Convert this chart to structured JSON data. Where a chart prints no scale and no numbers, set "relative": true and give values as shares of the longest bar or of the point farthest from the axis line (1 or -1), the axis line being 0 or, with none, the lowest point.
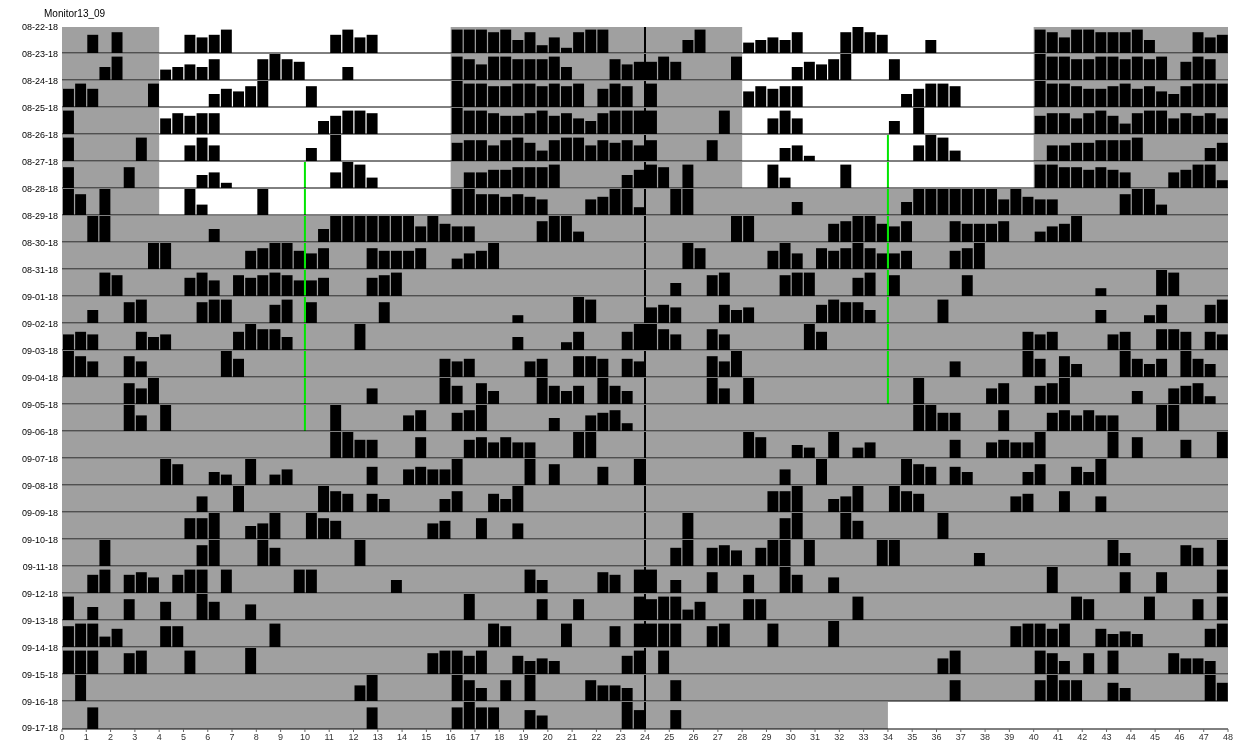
{
  "chart_data": [
    {
      "type": "bar",
      "title": "Monitor13_09",
      "ylabel": "08-22-18",
      "relative": true,
      "color": "#000000",
      "xlim": [
        0,
        48
      ],
      "tick_labels": false,
      "bands": [
        {
          "axis": "x",
          "from": 4,
          "to": 16,
          "color": "#ffffff"
        },
        {
          "axis": "x",
          "from": 28,
          "to": 40,
          "color": "#ffffff"
        }
      ],
      "ref_lines": [
        {
          "axis": "x",
          "value": 24,
          "color": "#000000"
        }
      ],
      "x": [
        1.25,
        2.25,
        5.25,
        5.75,
        6.25,
        6.75,
        11.25,
        11.75,
        12.25,
        12.75,
        16.25,
        16.75,
        17.25,
        17.75,
        18.25,
        18.75,
        19.25,
        19.75,
        20.25,
        20.75,
        21.25,
        21.75,
        22.25,
        25.75,
        26.25,
        28.25,
        28.75,
        29.25,
        29.75,
        30.25,
        32.25,
        32.75,
        33.25,
        33.75,
        35.75,
        40.25,
        40.75,
        41.25,
        41.75,
        42.25,
        42.75,
        43.25,
        43.75,
        44.25,
        44.75,
        46.75,
        47.25,
        47.75
      ],
      "values": [
        0.7,
        0.8,
        0.7,
        0.6,
        0.7,
        0.9,
        0.7,
        0.9,
        0.6,
        0.7,
        0.9,
        0.9,
        0.9,
        0.8,
        0.9,
        0.5,
        0.8,
        0.3,
        0.6,
        0.2,
        0.8,
        0.9,
        0.9,
        0.5,
        0.9,
        0.4,
        0.5,
        0.6,
        0.5,
        0.8,
        0.8,
        1,
        0.8,
        0.7,
        0.5,
        0.9,
        0.8,
        0.6,
        0.9,
        0.9,
        0.8,
        0.8,
        0.8,
        0.9,
        0.5,
        0.8,
        0.6,
        0.7
      ]
    },
    {
      "type": "bar",
      "ylabel": "08-23-18",
      "relative": true,
      "color": "#000000",
      "xlim": [
        0,
        48
      ],
      "tick_labels": false,
      "bands": [
        {
          "axis": "x",
          "from": 4,
          "to": 16,
          "color": "#ffffff"
        },
        {
          "axis": "x",
          "from": 28,
          "to": 40,
          "color": "#ffffff"
        }
      ],
      "ref_lines": [
        {
          "axis": "x",
          "value": 24,
          "color": "#000000"
        }
      ],
      "x": [
        1.75,
        2.25,
        4.25,
        4.75,
        5.25,
        5.75,
        6.25,
        8.25,
        8.75,
        9.25,
        9.75,
        11.75,
        16.25,
        16.75,
        17.25,
        17.75,
        18.25,
        18.75,
        19.25,
        19.75,
        20.25,
        20.75,
        22.75,
        23.25,
        23.75,
        24.25,
        24.75,
        25.25,
        27.75,
        30.25,
        30.75,
        31.25,
        31.75,
        32.25,
        34.25,
        40.25,
        40.75,
        41.25,
        41.75,
        42.25,
        42.75,
        43.25,
        43.75,
        44.25,
        44.75,
        45.25,
        46.25,
        46.75,
        47.25
      ],
      "values": [
        0.5,
        0.9,
        0.4,
        0.5,
        0.6,
        0.5,
        0.8,
        0.8,
        1,
        0.8,
        0.7,
        0.5,
        0.9,
        0.8,
        0.6,
        0.9,
        0.9,
        0.8,
        0.8,
        0.8,
        0.9,
        0.5,
        0.8,
        0.6,
        0.7,
        0.7,
        0.9,
        0.7,
        0.9,
        0.5,
        0.7,
        0.6,
        0.8,
        1,
        0.8,
        1,
        0.9,
        0.9,
        0.8,
        0.8,
        0.9,
        0.9,
        0.8,
        0.9,
        0.8,
        0.9,
        0.7,
        0.9,
        0.8
      ]
    },
    {
      "type": "bar",
      "ylabel": "08-24-18",
      "relative": true,
      "color": "#000000",
      "xlim": [
        0,
        48
      ],
      "tick_labels": false,
      "bands": [
        {
          "axis": "x",
          "from": 4,
          "to": 16,
          "color": "#ffffff"
        },
        {
          "axis": "x",
          "from": 28,
          "to": 40,
          "color": "#ffffff"
        }
      ],
      "ref_lines": [
        {
          "axis": "x",
          "value": 24,
          "color": "#000000"
        }
      ],
      "x": [
        0.25,
        0.75,
        1.25,
        3.75,
        6.25,
        6.75,
        7.25,
        7.75,
        8.25,
        10.25,
        16.25,
        16.75,
        17.25,
        17.75,
        18.25,
        18.75,
        19.25,
        19.75,
        20.25,
        20.75,
        21.25,
        22.25,
        22.75,
        23.25,
        24.25,
        28.25,
        28.75,
        29.25,
        29.75,
        30.25,
        34.75,
        35.25,
        35.75,
        36.25,
        36.75,
        40.25,
        40.75,
        41.25,
        41.75,
        42.25,
        42.75,
        43.25,
        43.75,
        44.25,
        44.75,
        45.25,
        45.75,
        46.25,
        46.75,
        47.25,
        47.75
      ],
      "values": [
        0.7,
        0.9,
        0.7,
        0.9,
        0.5,
        0.7,
        0.6,
        0.8,
        1,
        0.8,
        1,
        0.9,
        0.9,
        0.8,
        0.8,
        0.9,
        0.9,
        0.8,
        0.9,
        0.8,
        0.9,
        0.7,
        0.9,
        0.8,
        0.9,
        0.6,
        0.8,
        0.7,
        0.8,
        0.8,
        0.5,
        0.7,
        0.9,
        0.9,
        0.8,
        1,
        0.9,
        0.9,
        0.8,
        0.7,
        0.7,
        0.8,
        0.9,
        0.7,
        0.8,
        0.6,
        0.5,
        0.8,
        0.9,
        0.9,
        0.9
      ]
    },
    {
      "type": "bar",
      "ylabel": "08-25-18",
      "relative": true,
      "color": "#000000",
      "xlim": [
        0,
        48
      ],
      "tick_labels": false,
      "bands": [
        {
          "axis": "x",
          "from": 4,
          "to": 16,
          "color": "#ffffff"
        },
        {
          "axis": "x",
          "from": 28,
          "to": 40,
          "color": "#ffffff"
        }
      ],
      "ref_lines": [
        {
          "axis": "x",
          "value": 24,
          "color": "#000000"
        }
      ],
      "x": [
        0.25,
        4.25,
        4.75,
        5.25,
        5.75,
        6.25,
        10.75,
        11.25,
        11.75,
        12.25,
        12.75,
        16.25,
        16.75,
        17.25,
        17.75,
        18.25,
        18.75,
        19.25,
        19.75,
        20.25,
        20.75,
        21.25,
        21.75,
        22.25,
        22.75,
        23.25,
        23.75,
        24.25,
        27.25,
        29.25,
        29.75,
        30.25,
        34.25,
        35.25,
        40.25,
        40.75,
        41.25,
        41.75,
        42.25,
        42.75,
        43.25,
        43.75,
        44.25,
        44.75,
        45.25,
        45.75,
        46.25,
        46.75,
        47.25,
        47.75
      ],
      "values": [
        0.9,
        0.6,
        0.8,
        0.7,
        0.8,
        0.8,
        0.5,
        0.7,
        0.9,
        0.9,
        0.8,
        1,
        0.9,
        0.9,
        0.8,
        0.7,
        0.7,
        0.8,
        0.9,
        0.7,
        0.8,
        0.6,
        0.5,
        0.8,
        0.9,
        0.9,
        0.9,
        0.9,
        0.9,
        0.6,
        0.9,
        0.6,
        0.5,
        1,
        0.7,
        0.8,
        0.8,
        0.6,
        0.8,
        0.9,
        0.7,
        0.4,
        0.8,
        0.9,
        0.9,
        0.6,
        0.8,
        0.7,
        0.8,
        0.6
      ]
    },
    {
      "type": "bar",
      "ylabel": "08-26-18",
      "relative": true,
      "color": "#000000",
      "xlim": [
        0,
        48
      ],
      "tick_labels": false,
      "bands": [
        {
          "axis": "x",
          "from": 4,
          "to": 16,
          "color": "#ffffff"
        },
        {
          "axis": "x",
          "from": 28,
          "to": 40,
          "color": "#ffffff"
        }
      ],
      "ref_lines": [
        {
          "axis": "x",
          "value": 24,
          "color": "#000000"
        },
        {
          "axis": "x",
          "value": 34,
          "color": "#00e600"
        }
      ],
      "x": [
        0.25,
        3.25,
        5.25,
        5.75,
        6.25,
        10.25,
        11.25,
        16.25,
        16.75,
        17.25,
        17.75,
        18.25,
        18.75,
        19.25,
        19.75,
        20.25,
        20.75,
        21.25,
        21.75,
        22.25,
        22.75,
        23.25,
        23.75,
        24.25,
        26.75,
        29.75,
        30.25,
        30.75,
        35.25,
        35.75,
        36.25,
        36.75,
        40.75,
        41.25,
        41.75,
        42.25,
        42.75,
        43.25,
        43.75,
        44.25,
        47.25,
        47.75
      ],
      "values": [
        0.9,
        0.9,
        0.6,
        0.9,
        0.6,
        0.5,
        1,
        0.7,
        0.8,
        0.8,
        0.6,
        0.8,
        0.9,
        0.7,
        0.4,
        0.8,
        0.9,
        0.9,
        0.6,
        0.8,
        0.7,
        0.8,
        0.6,
        0.8,
        0.8,
        0.5,
        0.6,
        0.2,
        0.6,
        1,
        0.9,
        0.4,
        0.6,
        0.6,
        0.7,
        0.7,
        0.8,
        0.8,
        0.8,
        0.9,
        0.5,
        0.7
      ]
    },
    {
      "type": "bar",
      "ylabel": "08-27-18",
      "relative": true,
      "color": "#000000",
      "xlim": [
        0,
        48
      ],
      "tick_labels": false,
      "bands": [
        {
          "axis": "x",
          "from": 4,
          "to": 16,
          "color": "#ffffff"
        },
        {
          "axis": "x",
          "from": 28,
          "to": 40,
          "color": "#ffffff"
        }
      ],
      "ref_lines": [
        {
          "axis": "x",
          "value": 24,
          "color": "#000000"
        },
        {
          "axis": "x",
          "value": 10,
          "color": "#00e600"
        },
        {
          "axis": "x",
          "value": 34,
          "color": "#00e600"
        }
      ],
      "x": [
        0.25,
        2.75,
        5.75,
        6.25,
        6.75,
        11.25,
        11.75,
        12.25,
        12.75,
        16.75,
        17.25,
        17.75,
        18.25,
        18.75,
        19.25,
        19.75,
        20.25,
        23.25,
        23.75,
        24.25,
        24.75,
        25.75,
        29.25,
        29.75,
        32.25,
        40.25,
        40.75,
        41.25,
        41.75,
        42.25,
        42.75,
        43.25,
        43.75,
        45.75,
        46.25,
        46.75,
        47.25,
        47.75
      ],
      "values": [
        0.8,
        0.8,
        0.5,
        0.6,
        0.2,
        0.6,
        1,
        0.9,
        0.4,
        0.6,
        0.6,
        0.7,
        0.7,
        0.8,
        0.8,
        0.8,
        0.9,
        0.5,
        0.7,
        0.9,
        0.8,
        0.9,
        0.9,
        0.4,
        0.9,
        0.9,
        0.9,
        0.8,
        0.8,
        0.7,
        0.8,
        0.7,
        0.6,
        0.6,
        0.7,
        0.9,
        0.9,
        0.3
      ]
    },
    {
      "type": "bar",
      "ylabel": "08-28-18",
      "relative": true,
      "color": "#000000",
      "xlim": [
        0,
        48
      ],
      "tick_labels": false,
      "bands": [
        {
          "axis": "x",
          "from": 4,
          "to": 16,
          "color": "#ffffff"
        }
      ],
      "ref_lines": [
        {
          "axis": "x",
          "value": 24,
          "color": "#000000"
        },
        {
          "axis": "x",
          "value": 10,
          "color": "#00e600"
        },
        {
          "axis": "x",
          "value": 34,
          "color": "#00e600"
        }
      ],
      "x": [
        0.25,
        0.75,
        1.75,
        5.25,
        5.75,
        8.25,
        16.25,
        16.75,
        17.25,
        17.75,
        18.25,
        18.75,
        19.25,
        19.75,
        21.75,
        22.25,
        22.75,
        23.25,
        23.75,
        25.25,
        25.75,
        30.25,
        34.75,
        35.25,
        35.75,
        36.25,
        36.75,
        37.25,
        37.75,
        38.25,
        38.75,
        39.25,
        39.75,
        40.25,
        40.75,
        43.75,
        44.25,
        44.75,
        45.25
      ],
      "values": [
        1,
        0.8,
        1,
        1,
        0.4,
        1,
        1,
        1,
        0.8,
        0.8,
        0.7,
        0.8,
        0.7,
        0.6,
        0.6,
        0.7,
        1,
        1,
        0.3,
        1,
        1,
        0.5,
        0.5,
        1,
        1,
        1,
        1,
        1,
        1,
        1,
        0.6,
        1,
        0.7,
        0.6,
        0.6,
        0.8,
        1,
        1,
        0.4
      ]
    },
    {
      "type": "bar",
      "ylabel": "08-29-18",
      "relative": true,
      "color": "#000000",
      "xlim": [
        0,
        48
      ],
      "tick_labels": false,
      "ref_lines": [
        {
          "axis": "x",
          "value": 24,
          "color": "#000000"
        },
        {
          "axis": "x",
          "value": 10,
          "color": "#00e600"
        },
        {
          "axis": "x",
          "value": 34,
          "color": "#00e600"
        }
      ],
      "x": [
        1.25,
        1.75,
        6.25,
        10.75,
        11.25,
        11.75,
        12.25,
        12.75,
        13.25,
        13.75,
        14.25,
        14.75,
        15.25,
        15.75,
        16.25,
        16.75,
        19.75,
        20.25,
        20.75,
        21.25,
        27.75,
        28.25,
        31.75,
        32.25,
        32.75,
        33.25,
        33.75,
        34.25,
        34.75,
        36.75,
        37.25,
        37.75,
        38.25,
        38.75,
        40.25,
        40.75,
        41.25,
        41.75
      ],
      "values": [
        1,
        1,
        0.5,
        0.5,
        1,
        1,
        1,
        1,
        1,
        1,
        1,
        0.6,
        1,
        0.7,
        0.6,
        0.6,
        0.8,
        1,
        1,
        0.4,
        1,
        1,
        0.7,
        0.8,
        1,
        1,
        0.7,
        0.6,
        0.8,
        0.8,
        0.7,
        0.7,
        0.7,
        0.8,
        0.4,
        0.6,
        0.7,
        1
      ]
    },
    {
      "type": "bar",
      "ylabel": "08-30-18",
      "relative": true,
      "color": "#000000",
      "xlim": [
        0,
        48
      ],
      "tick_labels": false,
      "ref_lines": [
        {
          "axis": "x",
          "value": 24,
          "color": "#000000"
        },
        {
          "axis": "x",
          "value": 10,
          "color": "#00e600"
        },
        {
          "axis": "x",
          "value": 34,
          "color": "#00e600"
        }
      ],
      "x": [
        3.75,
        4.25,
        7.75,
        8.25,
        8.75,
        9.25,
        9.75,
        10.25,
        10.75,
        12.75,
        13.25,
        13.75,
        14.25,
        14.75,
        16.25,
        16.75,
        17.25,
        17.75,
        25.75,
        26.25,
        29.25,
        29.75,
        30.25,
        31.25,
        31.75,
        32.25,
        32.75,
        33.25,
        33.75,
        34.25,
        34.75,
        36.75,
        37.25,
        37.75
      ],
      "values": [
        1,
        1,
        0.7,
        0.8,
        1,
        1,
        0.7,
        0.6,
        0.8,
        0.8,
        0.7,
        0.7,
        0.7,
        0.8,
        0.4,
        0.6,
        0.7,
        1,
        1,
        0.8,
        0.7,
        1,
        0.6,
        0.8,
        0.7,
        0.8,
        1,
        0.8,
        0.6,
        0.6,
        0.7,
        0.7,
        0.8,
        1
      ]
    },
    {
      "type": "bar",
      "ylabel": "08-31-18",
      "relative": true,
      "color": "#000000",
      "xlim": [
        0,
        48
      ],
      "tick_labels": false,
      "ref_lines": [
        {
          "axis": "x",
          "value": 24,
          "color": "#000000"
        },
        {
          "axis": "x",
          "value": 10,
          "color": "#00e600"
        },
        {
          "axis": "x",
          "value": 34,
          "color": "#00e600"
        }
      ],
      "x": [
        1.75,
        2.25,
        5.25,
        5.75,
        6.25,
        7.25,
        7.75,
        8.25,
        8.75,
        9.25,
        9.75,
        10.25,
        10.75,
        12.75,
        13.25,
        13.75,
        25.25,
        26.75,
        27.25,
        29.75,
        30.25,
        30.75,
        32.75,
        33.25,
        34.25,
        37.25,
        42.75,
        45.25,
        45.75
      ],
      "values": [
        0.9,
        0.8,
        0.7,
        0.9,
        0.6,
        0.8,
        0.7,
        0.8,
        0.9,
        0.8,
        0.6,
        0.6,
        0.7,
        0.7,
        0.8,
        0.9,
        0.5,
        0.8,
        0.9,
        0.8,
        0.9,
        0.9,
        0.7,
        0.9,
        0.8,
        0.8,
        0.3,
        1,
        0.9
      ]
    },
    {
      "type": "bar",
      "ylabel": "09-01-18",
      "relative": true,
      "color": "#000000",
      "xlim": [
        0,
        48
      ],
      "tick_labels": false,
      "ref_lines": [
        {
          "axis": "x",
          "value": 24,
          "color": "#000000"
        },
        {
          "axis": "x",
          "value": 10,
          "color": "#00e600"
        },
        {
          "axis": "x",
          "value": 34,
          "color": "#00e600"
        }
      ],
      "x": [
        1.25,
        2.75,
        3.25,
        5.75,
        6.25,
        6.75,
        8.75,
        9.25,
        10.25,
        13.25,
        18.75,
        21.25,
        21.75,
        24.25,
        24.75,
        25.25,
        27.25,
        27.75,
        28.25,
        31.25,
        31.75,
        32.25,
        32.75,
        33.25,
        36.25,
        42.75,
        44.75,
        45.25,
        47.25,
        47.75
      ],
      "values": [
        0.5,
        0.8,
        0.9,
        0.8,
        0.9,
        0.9,
        0.7,
        0.9,
        0.8,
        0.8,
        0.3,
        1,
        0.9,
        0.6,
        0.7,
        0.6,
        0.7,
        0.5,
        0.6,
        0.7,
        0.9,
        0.8,
        0.8,
        0.5,
        0.9,
        0.5,
        0.3,
        0.7,
        0.7,
        0.9
      ]
    },
    {
      "type": "bar",
      "ylabel": "09-02-18",
      "relative": true,
      "color": "#000000",
      "xlim": [
        0,
        48
      ],
      "tick_labels": false,
      "ref_lines": [
        {
          "axis": "x",
          "value": 24,
          "color": "#000000"
        },
        {
          "axis": "x",
          "value": 10,
          "color": "#00e600"
        },
        {
          "axis": "x",
          "value": 34,
          "color": "#00e600"
        }
      ],
      "x": [
        0.25,
        0.75,
        1.25,
        3.25,
        3.75,
        4.25,
        7.25,
        7.75,
        8.25,
        8.75,
        9.25,
        12.25,
        18.75,
        20.75,
        21.25,
        23.25,
        23.75,
        24.25,
        24.75,
        25.25,
        26.75,
        27.25,
        30.75,
        31.25,
        39.75,
        40.25,
        40.75,
        43.25,
        43.75,
        45.25,
        45.75,
        46.25,
        47.25,
        47.75
      ],
      "values": [
        0.6,
        0.7,
        0.6,
        0.7,
        0.5,
        0.6,
        0.7,
        1,
        0.8,
        0.8,
        0.5,
        1,
        0.5,
        0.3,
        0.7,
        0.7,
        1,
        1,
        0.8,
        0.6,
        0.8,
        0.6,
        1,
        0.7,
        0.7,
        0.6,
        0.7,
        0.6,
        0.7,
        0.8,
        0.8,
        0.7,
        0.7,
        0.6
      ]
    },
    {
      "type": "bar",
      "ylabel": "09-03-18",
      "relative": true,
      "color": "#000000",
      "xlim": [
        0,
        48
      ],
      "tick_labels": false,
      "ref_lines": [
        {
          "axis": "x",
          "value": 24,
          "color": "#000000"
        },
        {
          "axis": "x",
          "value": 10,
          "color": "#00e600"
        },
        {
          "axis": "x",
          "value": 34,
          "color": "#00e600"
        }
      ],
      "x": [
        0.25,
        0.75,
        1.25,
        2.75,
        3.25,
        6.75,
        7.25,
        15.75,
        16.25,
        16.75,
        19.25,
        19.75,
        21.25,
        21.75,
        22.25,
        23.25,
        23.75,
        26.75,
        27.25,
        27.75,
        36.75,
        39.75,
        40.25,
        41.25,
        41.75,
        43.75,
        44.25,
        44.75,
        45.25,
        46.25,
        46.75,
        47.25
      ],
      "values": [
        1,
        0.8,
        0.6,
        0.8,
        0.6,
        1,
        0.7,
        0.7,
        0.6,
        0.7,
        0.6,
        0.7,
        0.8,
        0.8,
        0.7,
        0.7,
        0.6,
        0.8,
        0.6,
        1,
        0.6,
        1,
        0.7,
        0.8,
        0.5,
        1,
        0.7,
        0.5,
        0.7,
        1,
        0.7,
        0.5
      ]
    },
    {
      "type": "bar",
      "ylabel": "09-04-18",
      "relative": true,
      "color": "#000000",
      "xlim": [
        0,
        48
      ],
      "tick_labels": false,
      "ref_lines": [
        {
          "axis": "x",
          "value": 24,
          "color": "#000000"
        },
        {
          "axis": "x",
          "value": 10,
          "color": "#00e600"
        },
        {
          "axis": "x",
          "value": 34,
          "color": "#00e600"
        }
      ],
      "x": [
        2.75,
        3.25,
        3.75,
        12.75,
        15.75,
        16.25,
        17.25,
        17.75,
        19.75,
        20.25,
        20.75,
        21.25,
        22.25,
        22.75,
        23.25,
        26.75,
        27.25,
        28.25,
        35.25,
        38.25,
        38.75,
        40.25,
        40.75,
        41.25,
        44.25,
        45.75,
        46.25,
        46.75,
        47.25
      ],
      "values": [
        0.8,
        0.6,
        1,
        0.6,
        1,
        0.7,
        0.8,
        0.5,
        1,
        0.7,
        0.5,
        0.7,
        1,
        0.7,
        0.5,
        1,
        0.6,
        1,
        1,
        0.6,
        0.8,
        0.7,
        0.8,
        1,
        0.5,
        0.6,
        0.7,
        0.8,
        0.3
      ]
    },
    {
      "type": "bar",
      "ylabel": "09-05-18",
      "relative": true,
      "color": "#000000",
      "xlim": [
        0,
        48
      ],
      "tick_labels": false,
      "ref_lines": [
        {
          "axis": "x",
          "value": 24,
          "color": "#000000"
        },
        {
          "axis": "x",
          "value": 10,
          "color": "#00e600"
        }
      ],
      "x": [
        2.75,
        3.25,
        4.25,
        11.25,
        14.25,
        14.75,
        16.25,
        16.75,
        17.25,
        20.25,
        21.75,
        22.25,
        22.75,
        23.25,
        35.25,
        35.75,
        36.25,
        36.75,
        38.75,
        40.75,
        41.25,
        41.75,
        42.25,
        42.75,
        43.25,
        45.25,
        45.75
      ],
      "values": [
        1,
        0.6,
        1,
        1,
        0.6,
        0.8,
        0.7,
        0.8,
        1,
        0.5,
        0.6,
        0.7,
        0.8,
        0.3,
        1,
        1,
        0.7,
        0.7,
        0.8,
        0.7,
        0.8,
        0.6,
        0.8,
        0.6,
        0.6,
        1,
        1
      ]
    },
    {
      "type": "bar",
      "ylabel": "09-06-18",
      "relative": true,
      "color": "#000000",
      "xlim": [
        0,
        48
      ],
      "tick_labels": false,
      "ref_lines": [
        {
          "axis": "x",
          "value": 24,
          "color": "#000000"
        }
      ],
      "x": [
        11.25,
        11.75,
        12.25,
        12.75,
        14.75,
        16.75,
        17.25,
        17.75,
        18.25,
        18.75,
        19.25,
        21.25,
        21.75,
        28.25,
        28.75,
        30.25,
        30.75,
        31.75,
        32.75,
        33.25,
        36.75,
        38.25,
        38.75,
        39.25,
        39.75,
        40.25,
        43.25,
        44.25,
        46.25,
        47.75
      ],
      "values": [
        1,
        1,
        0.7,
        0.7,
        0.8,
        0.7,
        0.8,
        0.6,
        0.8,
        0.6,
        0.6,
        1,
        1,
        1,
        0.8,
        0.5,
        0.4,
        1,
        0.4,
        0.6,
        0.7,
        0.6,
        0.7,
        0.6,
        0.6,
        1,
        1,
        0.8,
        0.7,
        1
      ]
    },
    {
      "type": "bar",
      "ylabel": "09-07-18",
      "relative": true,
      "color": "#000000",
      "xlim": [
        0,
        48
      ],
      "tick_labels": false,
      "ref_lines": [
        {
          "axis": "x",
          "value": 24,
          "color": "#000000"
        }
      ],
      "x": [
        4.25,
        4.75,
        6.25,
        6.75,
        7.75,
        8.75,
        9.25,
        12.75,
        14.25,
        14.75,
        15.25,
        15.75,
        16.25,
        19.25,
        20.25,
        22.25,
        23.75,
        29.75,
        31.25,
        34.75,
        35.25,
        35.75,
        36.75,
        37.25,
        39.75,
        40.25,
        41.75,
        42.25,
        42.75
      ],
      "values": [
        1,
        0.8,
        0.5,
        0.4,
        1,
        0.4,
        0.6,
        0.7,
        0.6,
        0.7,
        0.6,
        0.6,
        1,
        1,
        0.8,
        0.7,
        1,
        0.6,
        1,
        1,
        0.8,
        0.7,
        0.7,
        0.5,
        0.5,
        0.8,
        0.7,
        0.5,
        1
      ]
    },
    {
      "type": "bar",
      "ylabel": "09-08-18",
      "relative": true,
      "color": "#000000",
      "xlim": [
        0,
        48
      ],
      "tick_labels": false,
      "ref_lines": [
        {
          "axis": "x",
          "value": 24,
          "color": "#000000"
        }
      ],
      "x": [
        5.75,
        7.25,
        10.75,
        11.25,
        11.75,
        12.75,
        13.25,
        15.75,
        16.25,
        17.75,
        18.25,
        18.75,
        29.25,
        29.75,
        30.25,
        31.75,
        32.25,
        32.75,
        34.25,
        34.75,
        35.25,
        39.25,
        39.75,
        41.25,
        42.75
      ],
      "values": [
        0.6,
        1,
        1,
        0.8,
        0.7,
        0.7,
        0.5,
        0.5,
        0.8,
        0.7,
        0.5,
        1,
        0.8,
        0.8,
        1,
        0.5,
        0.6,
        1,
        1,
        0.8,
        0.7,
        0.6,
        0.7,
        0.8,
        0.6
      ]
    },
    {
      "type": "bar",
      "ylabel": "09-09-18",
      "relative": true,
      "color": "#000000",
      "xlim": [
        0,
        48
      ],
      "tick_labels": false,
      "ref_lines": [
        {
          "axis": "x",
          "value": 24,
          "color": "#000000"
        }
      ],
      "x": [
        5.25,
        5.75,
        6.25,
        7.75,
        8.25,
        8.75,
        10.25,
        10.75,
        11.25,
        15.25,
        15.75,
        17.25,
        18.75,
        25.75,
        29.75,
        30.25,
        32.25,
        32.75,
        36.25
      ],
      "values": [
        0.8,
        0.8,
        1,
        0.5,
        0.6,
        1,
        1,
        0.8,
        0.7,
        0.6,
        0.7,
        0.8,
        0.6,
        1,
        0.8,
        1,
        1,
        0.7,
        1
      ]
    },
    {
      "type": "bar",
      "ylabel": "09-10-18",
      "relative": true,
      "color": "#000000",
      "xlim": [
        0,
        48
      ],
      "tick_labels": false,
      "ref_lines": [
        {
          "axis": "x",
          "value": 24,
          "color": "#000000"
        }
      ],
      "x": [
        1.75,
        5.75,
        6.25,
        8.25,
        8.75,
        12.25,
        25.25,
        25.75,
        26.75,
        27.25,
        27.75,
        28.75,
        29.25,
        29.75,
        30.75,
        33.75,
        34.25,
        37.75,
        43.25,
        43.75,
        46.25,
        46.75,
        47.75
      ],
      "values": [
        1,
        0.8,
        1,
        1,
        0.7,
        1,
        0.7,
        1,
        0.7,
        0.8,
        0.6,
        0.7,
        1,
        1,
        1,
        1,
        1,
        0.5,
        1,
        0.5,
        0.8,
        0.7,
        1
      ]
    },
    {
      "type": "bar",
      "ylabel": "09-11-18",
      "relative": true,
      "color": "#000000",
      "xlim": [
        0,
        48
      ],
      "tick_labels": false,
      "ref_lines": [
        {
          "axis": "x",
          "value": 24,
          "color": "#000000"
        }
      ],
      "x": [
        1.25,
        1.75,
        2.75,
        3.25,
        3.75,
        4.75,
        5.25,
        5.75,
        6.75,
        9.75,
        10.25,
        13.75,
        19.25,
        19.75,
        22.25,
        22.75,
        23.75,
        24.25,
        25.25,
        26.75,
        28.25,
        29.75,
        30.25,
        31.75,
        40.75,
        43.75,
        45.25,
        47.75
      ],
      "values": [
        0.7,
        0.9,
        0.7,
        0.8,
        0.6,
        0.7,
        0.9,
        0.9,
        0.9,
        0.9,
        0.9,
        0.5,
        0.9,
        0.5,
        0.8,
        0.7,
        0.9,
        0.9,
        0.5,
        0.8,
        0.7,
        1,
        0.7,
        0.6,
        1,
        0.8,
        0.8,
        0.9
      ]
    },
    {
      "type": "bar",
      "ylabel": "09-12-18",
      "relative": true,
      "color": "#000000",
      "xlim": [
        0,
        48
      ],
      "tick_labels": false,
      "ref_lines": [
        {
          "axis": "x",
          "value": 24,
          "color": "#000000"
        }
      ],
      "x": [
        0.25,
        1.25,
        2.75,
        4.25,
        5.75,
        6.25,
        7.75,
        16.75,
        19.75,
        21.25,
        23.75,
        24.25,
        24.75,
        25.25,
        25.75,
        26.25,
        28.25,
        28.75,
        32.75,
        41.75,
        42.25,
        44.75,
        46.75,
        47.75
      ],
      "values": [
        0.9,
        0.5,
        0.8,
        0.7,
        1,
        0.7,
        0.6,
        1,
        0.8,
        0.8,
        0.9,
        0.8,
        0.9,
        0.9,
        0.4,
        0.7,
        0.8,
        0.8,
        0.9,
        0.9,
        0.8,
        0.9,
        0.8,
        0.9
      ]
    },
    {
      "type": "bar",
      "ylabel": "09-13-18",
      "relative": true,
      "color": "#000000",
      "xlim": [
        0,
        48
      ],
      "tick_labels": false,
      "ref_lines": [
        {
          "axis": "x",
          "value": 24,
          "color": "#000000"
        }
      ],
      "x": [
        0.25,
        0.75,
        1.25,
        1.75,
        2.25,
        4.25,
        4.75,
        8.75,
        17.75,
        18.25,
        20.75,
        22.75,
        23.75,
        24.25,
        24.75,
        25.25,
        26.75,
        27.25,
        29.25,
        31.75,
        39.25,
        39.75,
        40.25,
        40.75,
        41.25,
        42.75,
        43.25,
        43.75,
        44.25,
        47.25,
        47.75
      ],
      "values": [
        0.8,
        0.9,
        0.9,
        0.4,
        0.7,
        0.8,
        0.8,
        0.9,
        0.9,
        0.8,
        0.9,
        0.8,
        0.9,
        0.9,
        0.9,
        0.9,
        0.8,
        0.9,
        0.9,
        1,
        0.8,
        0.9,
        0.9,
        0.7,
        0.9,
        0.7,
        0.5,
        0.6,
        0.5,
        0.7,
        0.9
      ]
    },
    {
      "type": "bar",
      "ylabel": "09-14-18",
      "relative": true,
      "color": "#000000",
      "xlim": [
        0,
        48
      ],
      "tick_labels": false,
      "ref_lines": [
        {
          "axis": "x",
          "value": 24,
          "color": "#000000"
        }
      ],
      "x": [
        0.25,
        0.75,
        1.25,
        2.75,
        3.25,
        5.25,
        7.75,
        15.25,
        15.75,
        16.25,
        16.75,
        17.25,
        18.75,
        19.25,
        19.75,
        20.25,
        23.25,
        23.75,
        24.75,
        36.25,
        36.75,
        40.25,
        40.75,
        41.25,
        42.25,
        43.25,
        45.75,
        46.25,
        46.75,
        47.25
      ],
      "values": [
        0.9,
        0.9,
        0.9,
        0.8,
        0.9,
        0.9,
        1,
        0.8,
        0.9,
        0.9,
        0.7,
        0.9,
        0.7,
        0.5,
        0.6,
        0.5,
        0.7,
        0.9,
        0.9,
        0.6,
        0.9,
        0.9,
        0.8,
        0.5,
        0.8,
        0.9,
        0.8,
        0.6,
        0.6,
        0.5
      ]
    },
    {
      "type": "bar",
      "ylabel": "09-15-18",
      "relative": true,
      "color": "#000000",
      "xlim": [
        0,
        48
      ],
      "tick_labels": false,
      "ref_lines": [
        {
          "axis": "x",
          "value": 24,
          "color": "#000000"
        }
      ],
      "x": [
        0.75,
        12.25,
        12.75,
        16.25,
        16.75,
        17.25,
        18.25,
        19.25,
        21.75,
        22.25,
        22.75,
        23.25,
        25.25,
        36.75,
        40.25,
        40.75,
        41.25,
        41.75,
        43.25,
        43.75,
        47.25,
        47.75
      ],
      "values": [
        1,
        0.6,
        1,
        1,
        0.8,
        0.5,
        0.8,
        1,
        0.8,
        0.6,
        0.6,
        0.5,
        0.8,
        0.8,
        0.8,
        1,
        0.8,
        0.8,
        0.7,
        0.5,
        1,
        0.7
      ]
    },
    {
      "type": "bar",
      "ylabel": "09-16-18",
      "relative": true,
      "color": "#000000",
      "xlim": [
        0,
        48
      ],
      "xticks": [
        0,
        1,
        2,
        3,
        4,
        5,
        6,
        7,
        8,
        9,
        10,
        11,
        12,
        13,
        14,
        15,
        16,
        17,
        18,
        19,
        20,
        21,
        22,
        23,
        24,
        25,
        26,
        27,
        28,
        29,
        30,
        31,
        32,
        33,
        34,
        35,
        36,
        37,
        38,
        39,
        40,
        41,
        42,
        43,
        44,
        45,
        46,
        47,
        48
      ],
      "tick_labels": "x",
      "annotations": [
        "09-17-18"
      ],
      "bands": [
        {
          "axis": "x",
          "from": 34,
          "to": 48,
          "color": "#ffffff"
        }
      ],
      "ref_lines": [
        {
          "axis": "x",
          "value": 24,
          "color": "#000000"
        }
      ],
      "x": [
        1.25,
        12.75,
        16.25,
        16.75,
        17.25,
        17.75,
        19.25,
        19.75,
        23.25,
        23.75,
        25.25
      ],
      "values": [
        0.8,
        0.8,
        0.8,
        1,
        0.8,
        0.8,
        0.7,
        0.5,
        1,
        0.7,
        0.7
      ]
    }
  ]
}
